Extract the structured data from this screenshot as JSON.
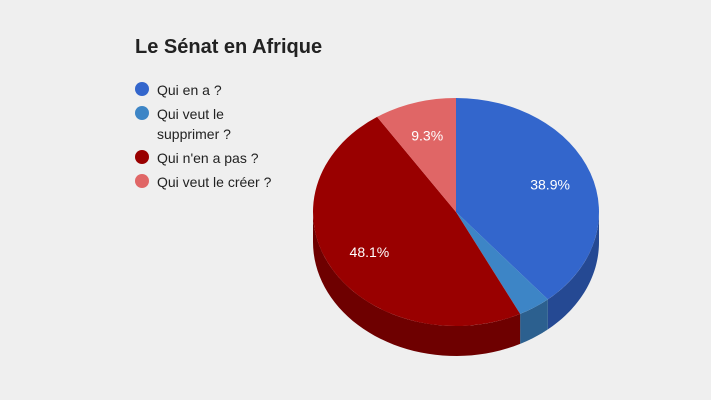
{
  "chart_data": {
    "type": "pie",
    "title": "Le Sénat en Afrique",
    "legend_position": "left",
    "three_d": true,
    "slices": [
      {
        "label": "Qui en a ?",
        "value": 38.9,
        "display": "38.9%",
        "color": "#3366cc"
      },
      {
        "label": "Qui veut le supprimer ?",
        "value": 3.7,
        "display": "",
        "color": "#3d85c6"
      },
      {
        "label": "Qui n'en a pas ?",
        "value": 48.1,
        "display": "48.1%",
        "color": "#990000"
      },
      {
        "label": "Qui veut le créer ?",
        "value": 9.3,
        "display": "9.3%",
        "color": "#e06666"
      }
    ]
  }
}
